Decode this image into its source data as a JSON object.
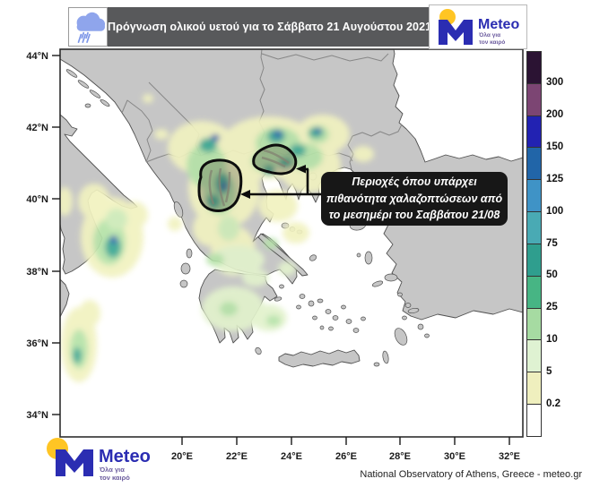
{
  "header": {
    "title": "Πρόγνωση ολικού υετού για το Σάββατο 21 Αυγούστου 2021"
  },
  "logo": {
    "name": "Meteo",
    "tagline_lines": [
      "Όλα για",
      "τον καιρό"
    ]
  },
  "annotation": {
    "lines": [
      "Περιοχές όπου υπάρχει",
      "πιθανότητα χαλαζοπτώσεων από",
      "το μεσημέρι του Σαββάτου 21/08"
    ],
    "text": "Περιοχές όπου υπάρχει πιθανότητα χαλαζοπτώσεων από το μεσημέρι του Σαββάτου 21/08"
  },
  "credit": {
    "text": "National Observatory of Athens, Greece - meteo.gr"
  },
  "axes": {
    "lat": [
      "44°N",
      "42°N",
      "40°N",
      "38°N",
      "36°N",
      "34°N"
    ],
    "lon": [
      "20°E",
      "22°E",
      "24°E",
      "26°E",
      "28°E",
      "30°E",
      "32°E"
    ]
  },
  "colorbar": {
    "labels": [
      "300",
      "200",
      "150",
      "125",
      "100",
      "75",
      "50",
      "25",
      "10",
      "5",
      "0.2"
    ],
    "colors": [
      "#2b1333",
      "#7c4573",
      "#2222b2",
      "#2165a8",
      "#3f93c6",
      "#49aab4",
      "#2f9e8e",
      "#47b584",
      "#a6dba2",
      "#dff2d2",
      "#efefbe",
      "#ffffff"
    ]
  },
  "colors": {
    "header_bg": "#58595b",
    "land": "#c6c6c6",
    "sea": "#ffffff",
    "brand_blue": "#2b2db2",
    "brand_yellow": "#ffc524",
    "annotation_bg": "#171717"
  }
}
